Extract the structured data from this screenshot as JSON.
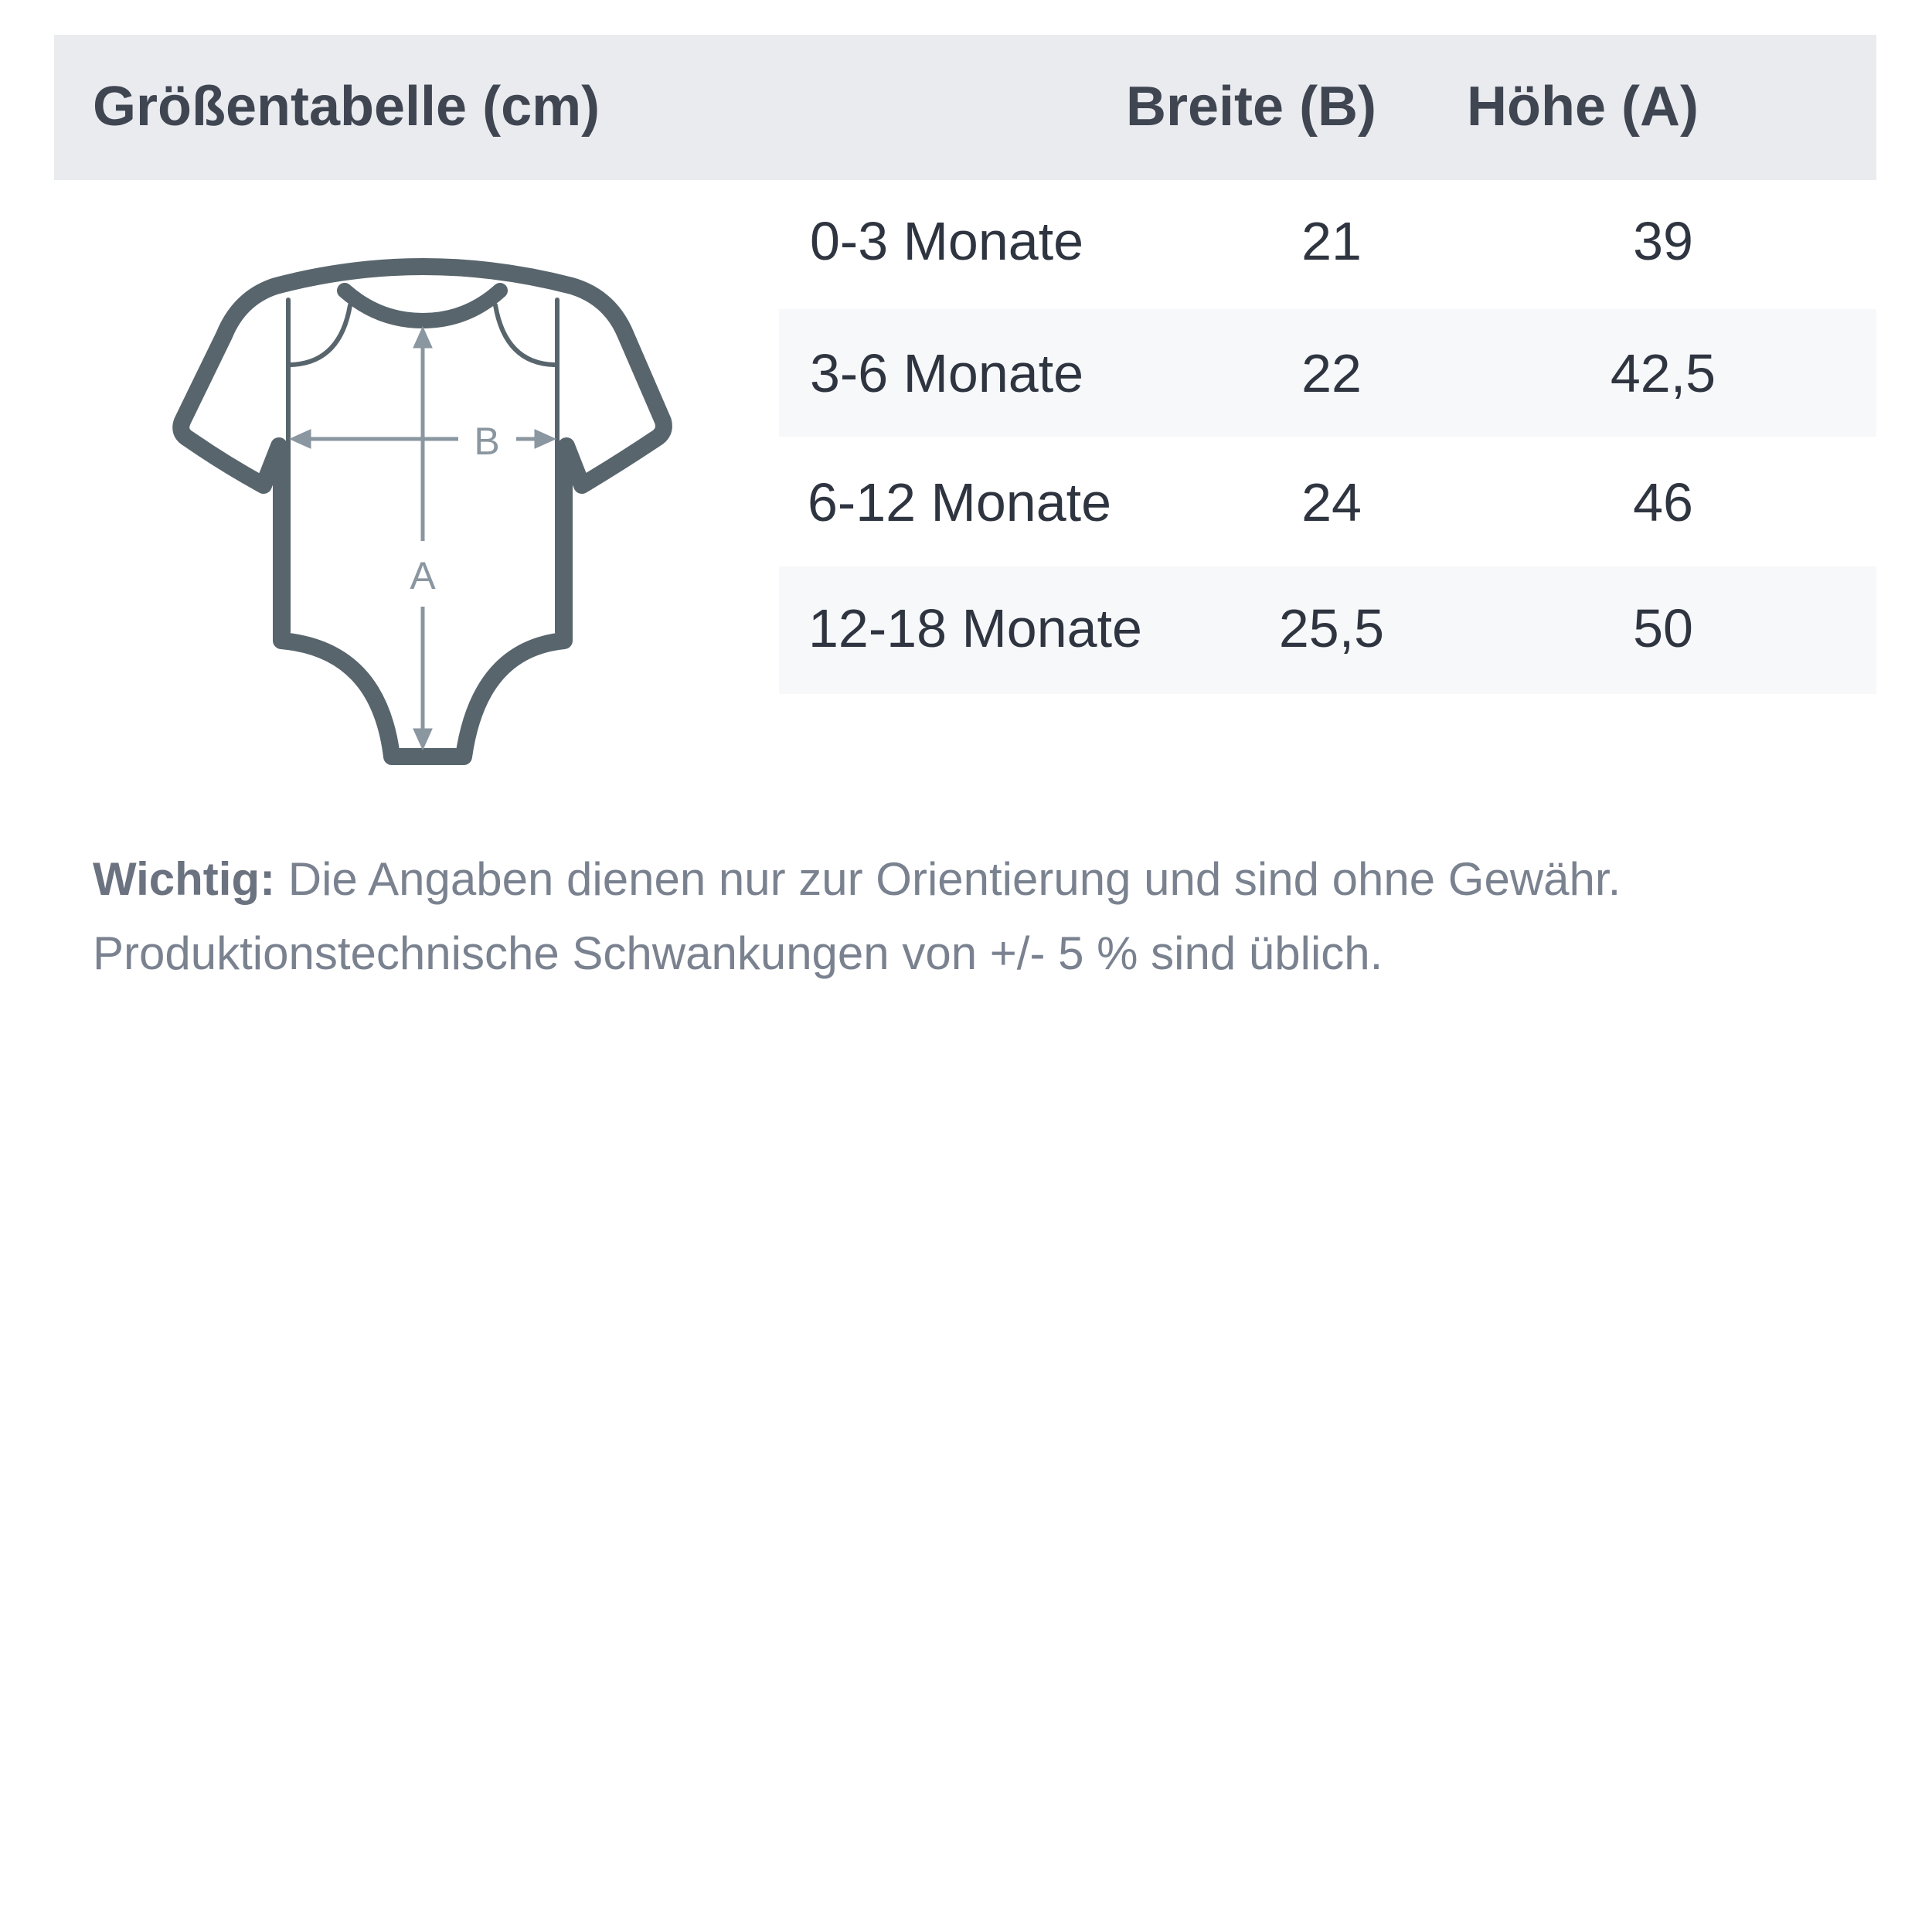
{
  "table": {
    "title": "Größentabelle (cm)",
    "columns": [
      "Breite (B)",
      "Höhe (A)"
    ],
    "rows": [
      {
        "size": "0-3 Monate",
        "width": "21",
        "height": "39"
      },
      {
        "size": "3-6 Monate",
        "width": "22",
        "height": "42,5"
      },
      {
        "size": "6-12 Monate",
        "width": "24",
        "height": "46"
      },
      {
        "size": "12-18 Monate",
        "width": "25,5",
        "height": "50"
      }
    ]
  },
  "diagram": {
    "label_width": "B",
    "label_height": "A",
    "icon": "baby-bodysuit-icon"
  },
  "note": {
    "label": "Wichtig:",
    "line1": "Die Angaben dienen nur zur Orientierung und sind ohne Gewähr.",
    "line2": "Produktionstechnische Schwankungen von +/- 5 % sind üblich."
  },
  "colors": {
    "header_bg": "#eaebef",
    "outline": "#58656d",
    "measure": "#8a96a0"
  }
}
